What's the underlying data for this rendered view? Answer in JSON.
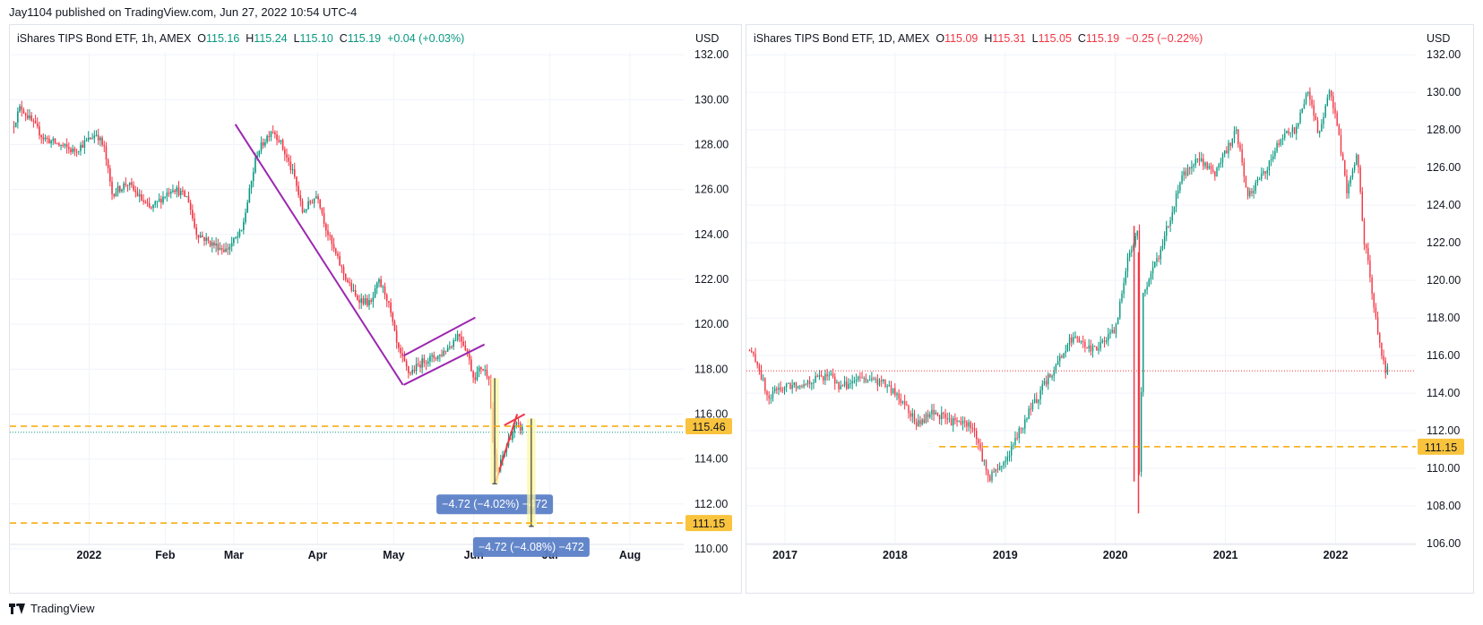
{
  "header": {
    "text": "Jay1104 published on TradingView.com, Jun 27, 2022 10:54 UTC-4"
  },
  "footer": {
    "brand": "TradingView"
  },
  "colors": {
    "up": "#089981",
    "down": "#f23645",
    "trend": "#9c27b0",
    "level": "#f7a600",
    "measure": "#5b7fc7",
    "highlight": "#fff59d"
  },
  "left": {
    "legend": {
      "title": "iShares TIPS Bond ETF, 1h, AMEX",
      "o_label": "O",
      "o": "115.16",
      "h_label": "H",
      "h": "115.24",
      "l_label": "L",
      "l": "115.10",
      "c_label": "C",
      "c": "115.19",
      "change": "+0.04 (+0.03%)"
    },
    "currency": "USD"
  },
  "right": {
    "legend": {
      "title": "iShares TIPS Bond ETF, 1D, AMEX",
      "o_label": "O",
      "o": "115.09",
      "h_label": "H",
      "h": "115.31",
      "l_label": "L",
      "l": "115.05",
      "c_label": "C",
      "c": "115.19",
      "change": "−0.25 (−0.22%)"
    },
    "currency": "USD"
  },
  "chart_data": [
    {
      "type": "candlestick",
      "title": "iShares TIPS Bond ETF, 1h, AMEX",
      "x_ticks": [
        {
          "label": "2022",
          "t": 2.4
        },
        {
          "label": "Feb",
          "t": 3.4
        },
        {
          "label": "Mar",
          "t": 4.3
        },
        {
          "label": "Apr",
          "t": 5.4
        },
        {
          "label": "May",
          "t": 6.4
        },
        {
          "label": "Jun",
          "t": 7.45
        },
        {
          "label": "Jul",
          "t": 8.45
        },
        {
          "label": "Aug",
          "t": 9.5
        }
      ],
      "x_range": [
        1.36,
        10.3
      ],
      "y_ticks": [
        "110.00",
        "112.00",
        "114.00",
        "116.00",
        "118.00",
        "120.00",
        "122.00",
        "124.00",
        "126.00",
        "128.00",
        "130.00",
        "132.00"
      ],
      "ylim": [
        109.4,
        133.0
      ],
      "price_path": [
        [
          1.4,
          128.8
        ],
        [
          1.5,
          129.7
        ],
        [
          1.8,
          128.3
        ],
        [
          2.2,
          127.7
        ],
        [
          2.5,
          128.5
        ],
        [
          2.6,
          127.8
        ],
        [
          2.7,
          125.8
        ],
        [
          2.9,
          126.3
        ],
        [
          3.2,
          125.1
        ],
        [
          3.5,
          126.1
        ],
        [
          3.7,
          125.6
        ],
        [
          3.8,
          124.1
        ],
        [
          4.0,
          123.6
        ],
        [
          4.2,
          123.3
        ],
        [
          4.4,
          124.1
        ],
        [
          4.5,
          125.8
        ],
        [
          4.6,
          127.6
        ],
        [
          4.8,
          128.7
        ],
        [
          4.9,
          128.2
        ],
        [
          5.1,
          126.5
        ],
        [
          5.2,
          125.0
        ],
        [
          5.4,
          125.8
        ],
        [
          5.5,
          124.4
        ],
        [
          5.6,
          123.4
        ],
        [
          5.75,
          122.2
        ],
        [
          5.9,
          121.2
        ],
        [
          6.1,
          120.9
        ],
        [
          6.2,
          121.9
        ],
        [
          6.3,
          121.3
        ],
        [
          6.35,
          120.6
        ],
        [
          6.45,
          118.9
        ],
        [
          6.6,
          117.8
        ],
        [
          6.8,
          118.4
        ],
        [
          7.0,
          118.6
        ],
        [
          7.15,
          119.1
        ],
        [
          7.25,
          119.6
        ],
        [
          7.35,
          118.9
        ],
        [
          7.45,
          117.6
        ],
        [
          7.55,
          118.1
        ],
        [
          7.65,
          117.7
        ],
        [
          7.7,
          114.8
        ],
        [
          7.75,
          113.4
        ],
        [
          7.8,
          113.8
        ],
        [
          7.9,
          114.8
        ],
        [
          8.0,
          115.5
        ],
        [
          8.1,
          115.3
        ]
      ],
      "trendlines": [
        {
          "from": [
            4.32,
            128.9
          ],
          "to": [
            6.52,
            117.3
          ]
        },
        {
          "from": [
            6.53,
            118.6
          ],
          "to": [
            7.47,
            120.3
          ]
        },
        {
          "from": [
            6.53,
            117.3
          ],
          "to": [
            7.59,
            119.1
          ]
        },
        {
          "from": [
            7.74,
            113.0
          ],
          "to": [
            8.02,
            116.0
          ]
        },
        {
          "from": [
            7.85,
            115.5
          ],
          "to": [
            8.12,
            116.0
          ]
        }
      ],
      "horizontal_levels": [
        {
          "label": "115.46",
          "value": 115.46,
          "style": "dashed"
        },
        {
          "label": "111.15",
          "value": 111.15,
          "style": "dashed"
        }
      ],
      "last_price": 115.19,
      "measurements": [
        {
          "label": "−4.72 (−4.02%) −472",
          "from_t": 7.67,
          "to_t": 7.78,
          "top": 117.6,
          "bottom": 112.9
        },
        {
          "label": "−4.72 (−4.08%) −472",
          "from_t": 8.15,
          "to_t": 8.26,
          "top": 115.8,
          "bottom": 111.0
        }
      ]
    },
    {
      "type": "candlestick",
      "title": "iShares TIPS Bond ETF, 1D, AMEX",
      "x_ticks": [
        {
          "label": "2017",
          "t": 2017.0
        },
        {
          "label": "2018",
          "t": 2018.0
        },
        {
          "label": "2019",
          "t": 2019.0
        },
        {
          "label": "2020",
          "t": 2020.0
        },
        {
          "label": "2021",
          "t": 2021.0
        },
        {
          "label": "2022",
          "t": 2022.0
        }
      ],
      "x_range": [
        2016.65,
        2023.2
      ],
      "y_ticks": [
        "106.00",
        "108.00",
        "110.00",
        "112.00",
        "114.00",
        "116.00",
        "118.00",
        "120.00",
        "122.00",
        "124.00",
        "126.00",
        "128.00",
        "130.00",
        "132.00"
      ],
      "ylim": [
        105.0,
        133.2
      ],
      "price_path": [
        [
          2016.67,
          116.3
        ],
        [
          2016.75,
          115.6
        ],
        [
          2016.85,
          113.6
        ],
        [
          2016.92,
          114.2
        ],
        [
          2017.2,
          114.6
        ],
        [
          2017.4,
          115.0
        ],
        [
          2017.5,
          114.3
        ],
        [
          2017.7,
          114.8
        ],
        [
          2017.9,
          114.5
        ],
        [
          2018.1,
          113.4
        ],
        [
          2018.2,
          112.3
        ],
        [
          2018.35,
          113.0
        ],
        [
          2018.5,
          112.5
        ],
        [
          2018.7,
          112.3
        ],
        [
          2018.85,
          109.5
        ],
        [
          2019.0,
          110.4
        ],
        [
          2019.2,
          112.8
        ],
        [
          2019.4,
          114.9
        ],
        [
          2019.6,
          116.9
        ],
        [
          2019.8,
          116.3
        ],
        [
          2020.0,
          117.3
        ],
        [
          2020.1,
          120.8
        ],
        [
          2020.2,
          122.8
        ],
        [
          2020.22,
          108.3
        ],
        [
          2020.25,
          119.2
        ],
        [
          2020.4,
          121.4
        ],
        [
          2020.6,
          125.4
        ],
        [
          2020.75,
          126.6
        ],
        [
          2020.9,
          125.6
        ],
        [
          2021.1,
          128.0
        ],
        [
          2021.2,
          124.5
        ],
        [
          2021.4,
          126.2
        ],
        [
          2021.5,
          127.6
        ],
        [
          2021.65,
          128.1
        ],
        [
          2021.75,
          130.2
        ],
        [
          2021.85,
          127.6
        ],
        [
          2021.95,
          130.3
        ],
        [
          2022.05,
          126.9
        ],
        [
          2022.1,
          124.8
        ],
        [
          2022.2,
          126.8
        ],
        [
          2022.25,
          122.4
        ],
        [
          2022.3,
          120.9
        ],
        [
          2022.35,
          118.6
        ],
        [
          2022.38,
          117.3
        ],
        [
          2022.45,
          115.2
        ],
        [
          2022.48,
          115.2
        ]
      ],
      "horizontal_levels": [
        {
          "label": "111.15",
          "value": 111.15,
          "style": "dashed",
          "from_t": 2018.4
        }
      ],
      "last_price": 115.19
    }
  ]
}
